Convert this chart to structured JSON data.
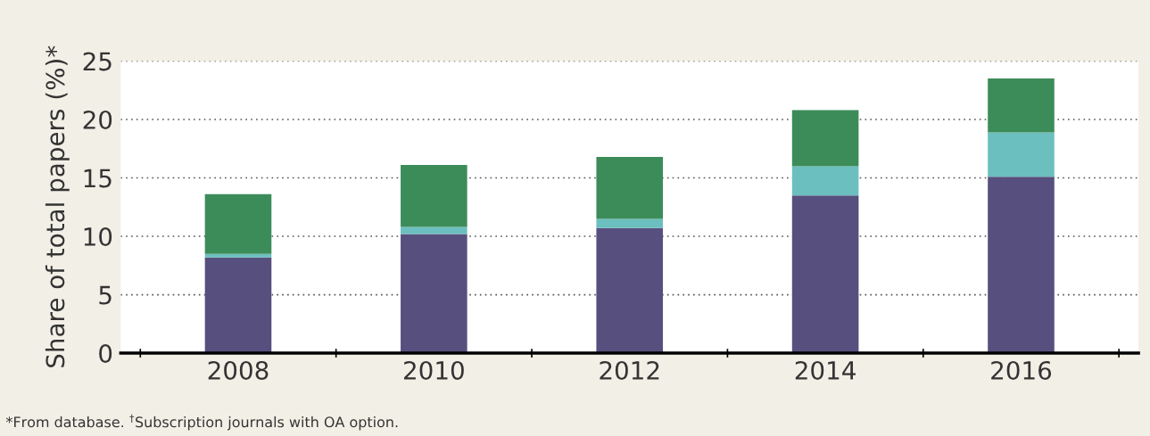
{
  "chart_data": {
    "type": "bar",
    "stacked": true,
    "ylabel": "Share of total papers (%)*",
    "categories": [
      "2008",
      "2010",
      "2012",
      "2014",
      "2016"
    ],
    "series": [
      {
        "color": "#574f7d",
        "values": [
          8.2,
          10.2,
          10.7,
          13.5,
          15.1
        ]
      },
      {
        "color": "#6cbfbf",
        "values": [
          0.3,
          0.6,
          0.8,
          2.5,
          3.8
        ]
      },
      {
        "color": "#3c8c5a",
        "values": [
          5.1,
          5.3,
          5.3,
          4.8,
          4.6
        ]
      }
    ],
    "ylim": [
      0,
      25
    ],
    "yticks": [
      0,
      5,
      10,
      15,
      20,
      25
    ],
    "grid": "y",
    "annotations": [
      "*From database. $^{†}$Subscription journals with OA option."
    ]
  }
}
